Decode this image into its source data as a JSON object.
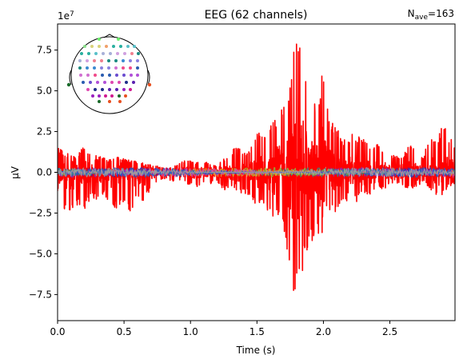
{
  "chart_data": {
    "type": "line",
    "title": "EEG (62 channels)",
    "annotation": {
      "base": "N",
      "sub": "ave",
      "value": "=163"
    },
    "xlabel": "Time (s)",
    "ylabel": "µV",
    "y_multiplier": "1e7",
    "xlim": [
      0.0,
      2.99
    ],
    "ylim": [
      -9.1,
      9.1
    ],
    "x_ticks": [
      0.0,
      0.5,
      1.0,
      1.5,
      2.0,
      2.5
    ],
    "x_tick_labels": [
      "0.0",
      "0.5",
      "1.0",
      "1.5",
      "2.0",
      "2.5"
    ],
    "y_ticks": [
      7.5,
      5.0,
      2.5,
      0.0,
      -2.5,
      -5.0,
      -7.5
    ],
    "y_tick_labels": [
      "7.5",
      "5.0",
      "2.5",
      "0.0",
      "−2.5",
      "−5.0",
      "−7.5"
    ],
    "grid": false,
    "legend": "sensor-layout inset (top-left)",
    "dominant_channel": {
      "color": "#ff0000",
      "envelope_note": "values in units of 1e7 µV; [time_s, max, min]",
      "envelope": [
        [
          0.0,
          1.6,
          -1.2
        ],
        [
          0.05,
          1.2,
          -2.5
        ],
        [
          0.1,
          1.1,
          -2.7
        ],
        [
          0.15,
          1.0,
          -2.0
        ],
        [
          0.2,
          1.8,
          -2.3
        ],
        [
          0.25,
          1.1,
          -1.6
        ],
        [
          0.3,
          1.0,
          -1.8
        ],
        [
          0.35,
          0.9,
          -1.3
        ],
        [
          0.4,
          0.8,
          -2.4
        ],
        [
          0.45,
          1.0,
          -2.2
        ],
        [
          0.5,
          0.9,
          -1.9
        ],
        [
          0.55,
          0.7,
          -2.6
        ],
        [
          0.6,
          0.8,
          -1.4
        ],
        [
          0.65,
          0.6,
          -1.9
        ],
        [
          0.7,
          0.5,
          -1.0
        ],
        [
          0.75,
          0.4,
          -0.6
        ],
        [
          0.8,
          0.3,
          -0.4
        ],
        [
          0.85,
          0.3,
          -0.5
        ],
        [
          0.9,
          0.5,
          -0.6
        ],
        [
          0.95,
          0.7,
          -0.6
        ],
        [
          1.0,
          0.7,
          -0.8
        ],
        [
          1.05,
          0.6,
          -0.9
        ],
        [
          1.1,
          0.7,
          -0.6
        ],
        [
          1.15,
          0.5,
          -0.7
        ],
        [
          1.2,
          0.4,
          -0.6
        ],
        [
          1.25,
          0.9,
          -1.1
        ],
        [
          1.3,
          1.1,
          -1.0
        ],
        [
          1.35,
          1.8,
          -1.2
        ],
        [
          1.4,
          1.2,
          -1.3
        ],
        [
          1.45,
          1.4,
          -1.4
        ],
        [
          1.5,
          2.6,
          -2.3
        ],
        [
          1.55,
          2.2,
          -2.1
        ],
        [
          1.6,
          3.0,
          -2.6
        ],
        [
          1.65,
          3.5,
          -2.8
        ],
        [
          1.7,
          4.0,
          -3.5
        ],
        [
          1.75,
          6.0,
          -6.5
        ],
        [
          1.8,
          8.6,
          -8.2
        ],
        [
          1.85,
          7.0,
          -6.0
        ],
        [
          1.9,
          4.0,
          -4.5
        ],
        [
          1.95,
          4.5,
          -3.5
        ],
        [
          2.0,
          7.0,
          -5.0
        ],
        [
          2.05,
          3.2,
          -2.6
        ],
        [
          2.1,
          3.0,
          -2.4
        ],
        [
          2.15,
          2.0,
          -2.1
        ],
        [
          2.2,
          2.3,
          -1.5
        ],
        [
          2.25,
          2.4,
          -1.8
        ],
        [
          2.3,
          2.2,
          -1.3
        ],
        [
          2.35,
          1.5,
          -1.6
        ],
        [
          2.4,
          1.9,
          -0.8
        ],
        [
          2.45,
          1.5,
          -1.1
        ],
        [
          2.5,
          1.2,
          -0.8
        ],
        [
          2.55,
          1.0,
          -0.7
        ],
        [
          2.6,
          1.1,
          -0.9
        ],
        [
          2.65,
          1.7,
          -1.0
        ],
        [
          2.7,
          1.4,
          -1.0
        ],
        [
          2.75,
          1.0,
          -0.5
        ],
        [
          2.8,
          2.2,
          -1.0
        ],
        [
          2.85,
          1.9,
          -1.4
        ],
        [
          2.9,
          3.0,
          -1.5
        ],
        [
          2.95,
          2.3,
          -0.6
        ],
        [
          2.99,
          1.5,
          -0.9
        ]
      ]
    },
    "other_channels_amplitude": 0.3,
    "other_channel_colors": [
      "#3b1fa8",
      "#7a2fd0",
      "#2a8c86",
      "#8fbf3a",
      "#e0a030",
      "#c84fb8",
      "#2060c0",
      "#a0a0a0"
    ],
    "sensor_colors": [
      "#6cf06c",
      "#58d6a0",
      "#8ce08c",
      "#d8d27a",
      "#f0a06a",
      "#2ab0a0",
      "#58c0c8",
      "#a8b0d8",
      "#d0a0e0",
      "#f08090",
      "#1a8a80",
      "#3a8ad0",
      "#8a80e0",
      "#d070d0",
      "#f04a8a",
      "#2a5cb0",
      "#6a4cd0",
      "#b050d8",
      "#e048b0",
      "#1e2d8a",
      "#5a20b0",
      "#9a20c0",
      "#d01a90",
      "#1a6a2a",
      "#e85020"
    ]
  }
}
